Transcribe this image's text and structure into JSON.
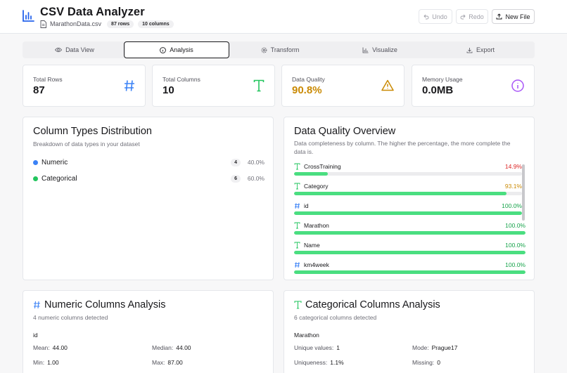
{
  "header": {
    "title": "CSV Data Analyzer",
    "file_name": "MarathonData.csv",
    "rows_badge": "87 rows",
    "cols_badge": "10 columns",
    "undo_label": "Undo",
    "redo_label": "Redo",
    "new_file_label": "New File"
  },
  "tabs": [
    {
      "label": "Data View",
      "icon": "eye-icon",
      "selected": false
    },
    {
      "label": "Analysis",
      "icon": "info-icon",
      "selected": true
    },
    {
      "label": "Transform",
      "icon": "gear-icon",
      "selected": false
    },
    {
      "label": "Visualize",
      "icon": "bar-chart-icon",
      "selected": false
    },
    {
      "label": "Export",
      "icon": "download-icon",
      "selected": false
    }
  ],
  "stats": [
    {
      "label": "Total Rows",
      "value": "87",
      "icon": "hash-icon",
      "color": "#3b82f6"
    },
    {
      "label": "Total Columns",
      "value": "10",
      "icon": "text-type-icon",
      "color": "#22c55e"
    },
    {
      "label": "Data Quality",
      "value": "90.8%",
      "icon": "warning-icon",
      "color": "#ca8a04"
    },
    {
      "label": "Memory Usage",
      "value": "0.0MB",
      "icon": "info-circle-icon",
      "color": "#a855f7"
    }
  ],
  "column_types": {
    "title": "Column Types Distribution",
    "subtitle": "Breakdown of data types in your dataset",
    "items": [
      {
        "name": "Numeric",
        "count": "4",
        "percent": "40.0%",
        "color": "#3b82f6"
      },
      {
        "name": "Categorical",
        "count": "6",
        "percent": "60.0%",
        "color": "#22c55e"
      }
    ]
  },
  "data_quality": {
    "title": "Data Quality Overview",
    "subtitle_line1": "Data completeness by column. The higher the percentage, the more complete the",
    "subtitle_line2": "data is.",
    "items": [
      {
        "name": "CrossTraining",
        "type": "text",
        "percent": "14.9%",
        "value": 14.9,
        "color": "#dc2626"
      },
      {
        "name": "Category",
        "type": "text",
        "percent": "93.1%",
        "value": 93.1,
        "color": "#ca8a04"
      },
      {
        "name": "id",
        "type": "numeric",
        "percent": "100.0%",
        "value": 100,
        "color": "#16a34a"
      },
      {
        "name": "Marathon",
        "type": "text",
        "percent": "100.0%",
        "value": 100,
        "color": "#16a34a"
      },
      {
        "name": "Name",
        "type": "text",
        "percent": "100.0%",
        "value": 100,
        "color": "#16a34a"
      },
      {
        "name": "km4week",
        "type": "numeric",
        "percent": "100.0%",
        "value": 100,
        "color": "#16a34a"
      }
    ]
  },
  "numeric_analysis": {
    "title": "Numeric Columns Analysis",
    "subtitle": "4 numeric columns detected",
    "column": "id",
    "mean_label": "Mean:",
    "mean": "44.00",
    "median_label": "Median:",
    "median": "44.00",
    "min_label": "Min:",
    "min": "1.00",
    "max_label": "Max:",
    "max": "87.00"
  },
  "categorical_analysis": {
    "title": "Categorical Columns Analysis",
    "subtitle": "6 categorical columns detected",
    "column": "Marathon",
    "unique_label": "Unique values:",
    "unique": "1",
    "mode_label": "Mode:",
    "mode": "Prague17",
    "uniqueness_label": "Uniqueness:",
    "uniqueness": "1.1%",
    "missing_label": "Missing:",
    "missing": "0"
  }
}
